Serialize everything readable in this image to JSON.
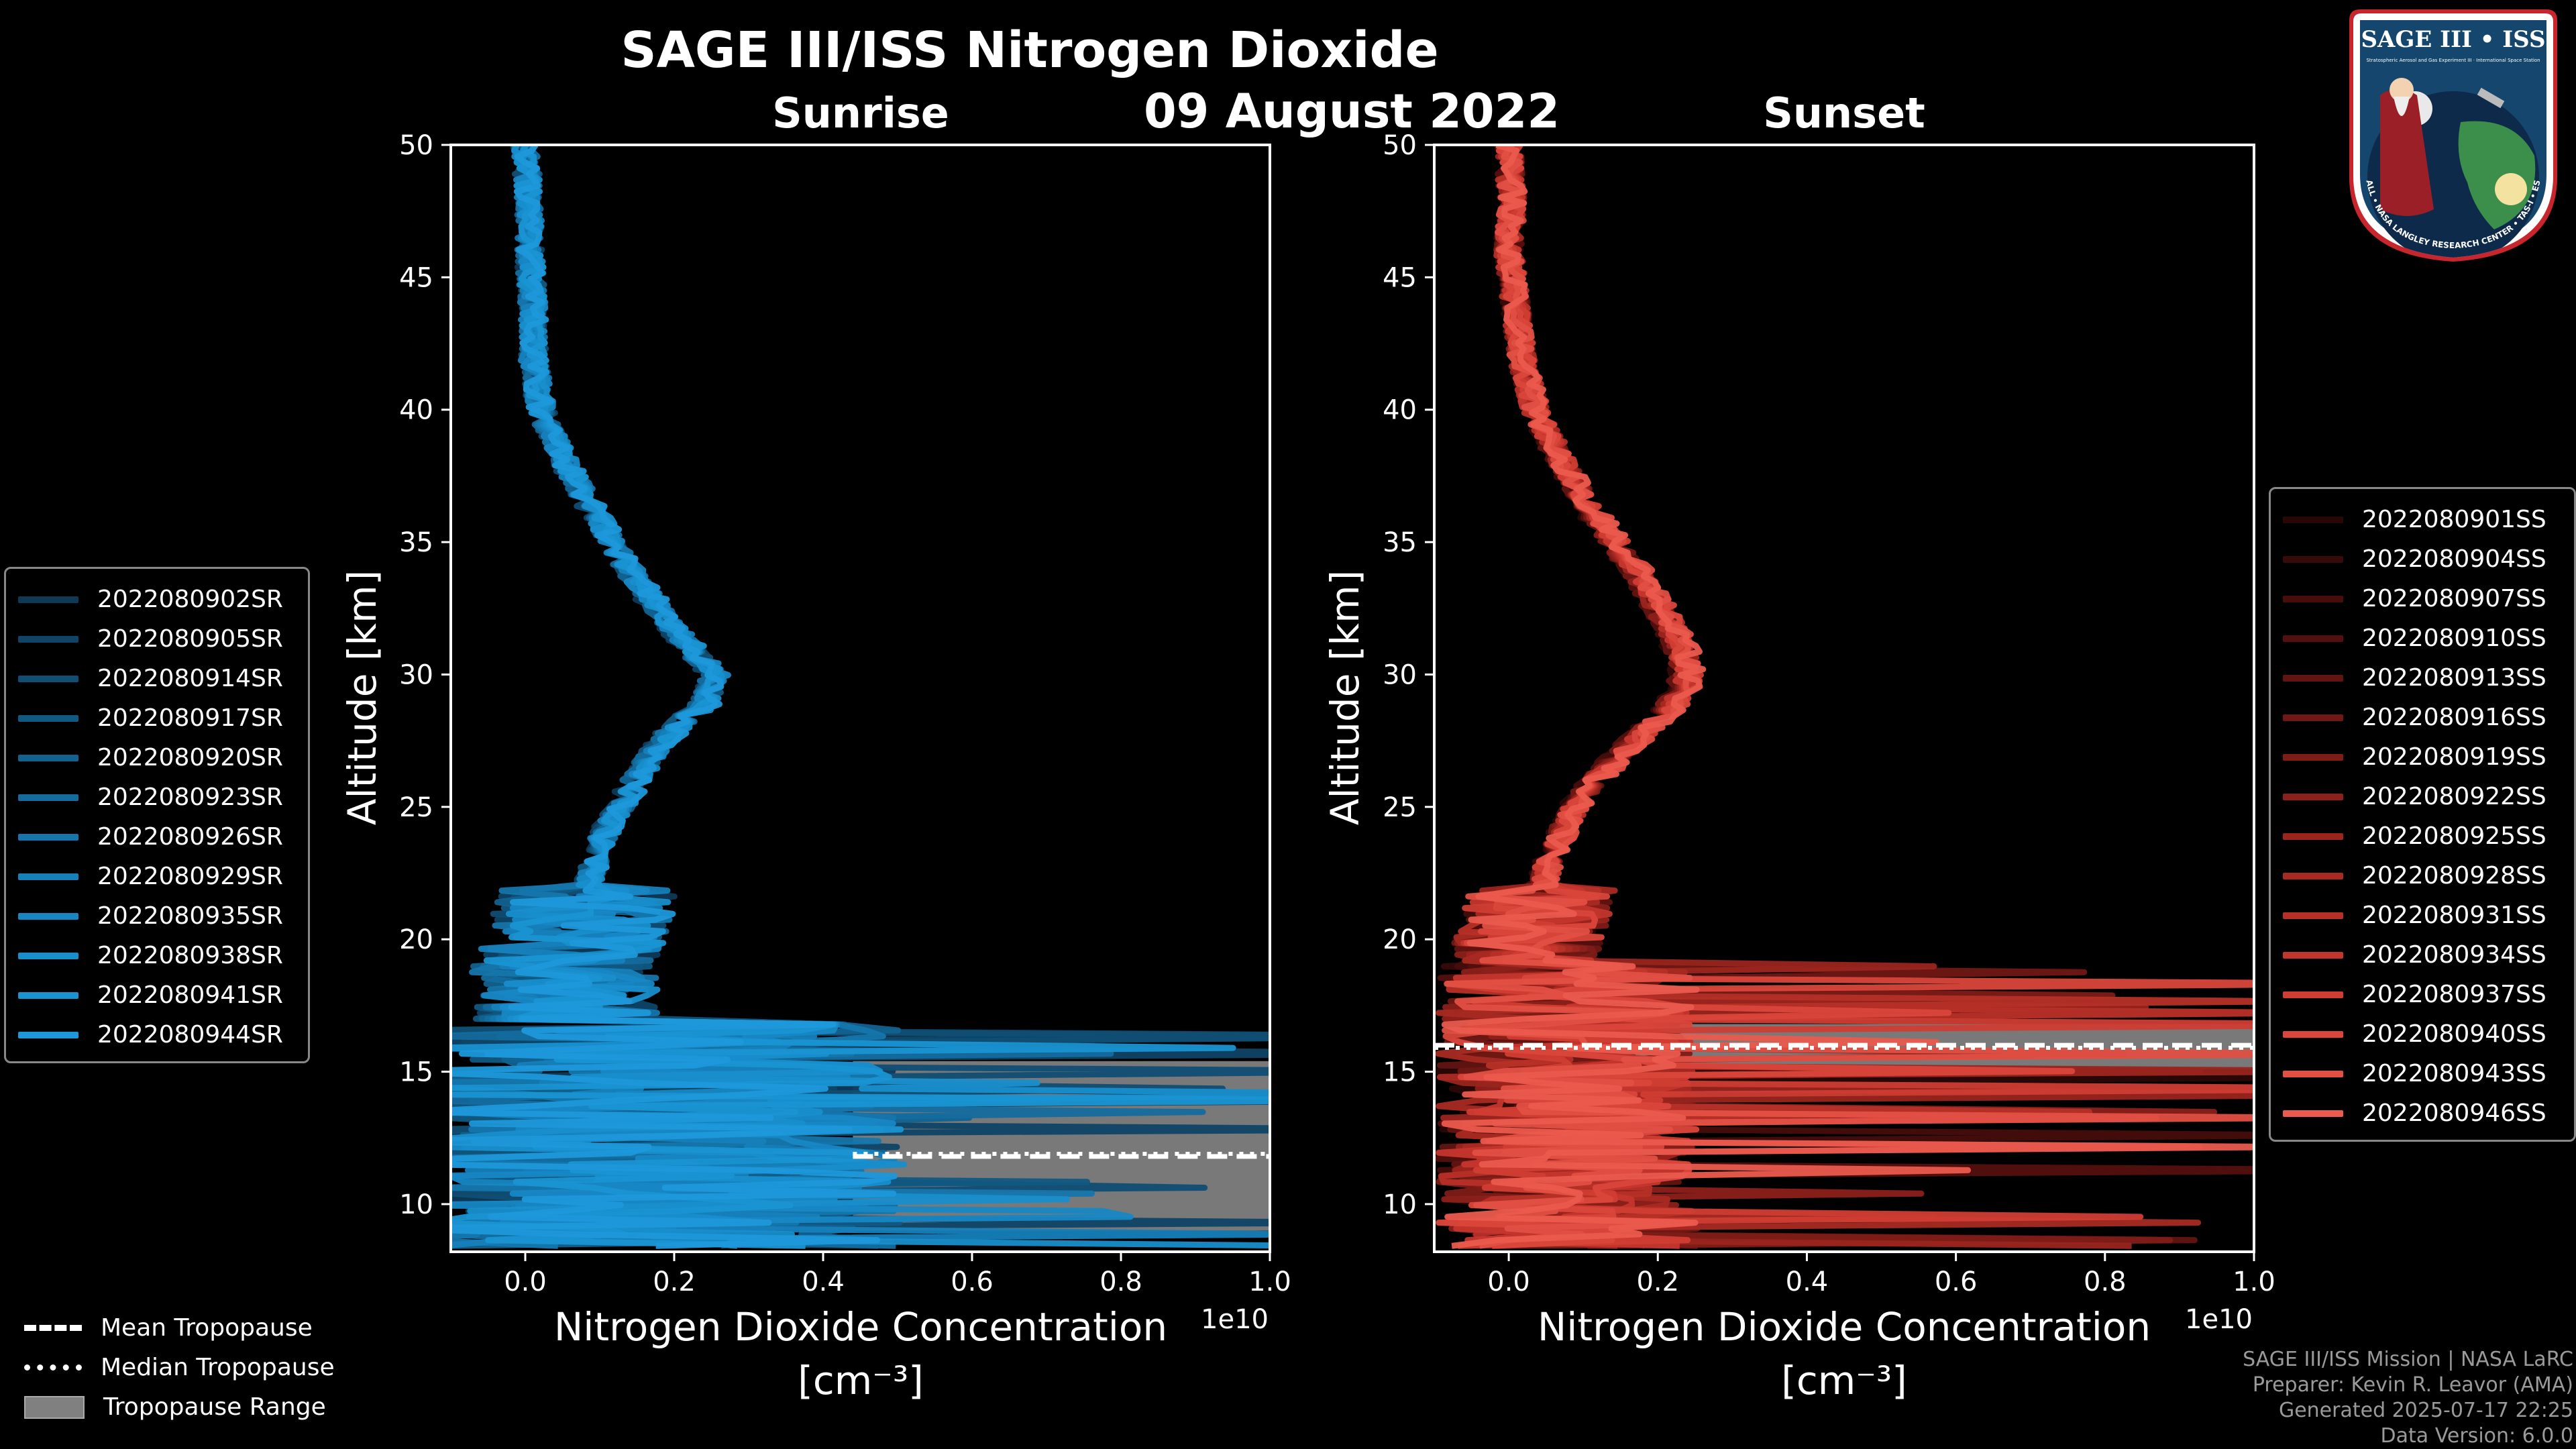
{
  "header": {
    "title": "SAGE III/ISS Nitrogen Dioxide",
    "date": "09 August 2022"
  },
  "colors": {
    "background": "#000000",
    "sunrise_base": "#1E8FD0",
    "sunset_base": "#E8574A",
    "tropo_range": "#808080",
    "axis": "#FFFFFF"
  },
  "chart_data": [
    {
      "type": "line",
      "panel": "sunrise",
      "title": "Sunrise",
      "xlabel": "Nitrogen Dioxide Concentration",
      "xlabel_units": "[cm⁻³]",
      "ylabel": "Altitude [km]",
      "x_scale_label": "1e10",
      "xlim": [
        -0.1,
        1.0
      ],
      "ylim": [
        8.2,
        50
      ],
      "xticks": [
        0.0,
        0.2,
        0.4,
        0.6,
        0.8,
        1.0
      ],
      "xtick_labels": [
        "0.0",
        "0.2",
        "0.4",
        "0.6",
        "0.8",
        "1.0"
      ],
      "yticks": [
        10,
        15,
        20,
        25,
        30,
        35,
        40,
        45,
        50
      ],
      "ytick_labels": [
        "10",
        "15",
        "20",
        "25",
        "30",
        "35",
        "40",
        "45",
        "50"
      ],
      "series_names": [
        "2022080902SR",
        "2022080905SR",
        "2022080914SR",
        "2022080917SR",
        "2022080920SR",
        "2022080923SR",
        "2022080926SR",
        "2022080929SR",
        "2022080935SR",
        "2022080938SR",
        "2022080941SR",
        "2022080944SR"
      ],
      "series_colors": [
        "#0E3A58",
        "#0F4466",
        "#104E74",
        "#115882",
        "#126290",
        "#146C9E",
        "#1576AC",
        "#1680BA",
        "#1787C4",
        "#188ECC",
        "#1993D2",
        "#1E98DA"
      ],
      "mean_profile": {
        "alt": [
          50,
          48,
          46,
          44,
          42,
          40,
          38,
          36,
          34,
          32,
          31,
          30,
          29,
          28,
          27,
          26,
          25,
          24,
          23,
          22,
          21,
          20,
          19,
          18,
          17,
          16,
          15,
          14,
          13,
          12,
          11,
          10,
          9.5,
          9
        ],
        "no2": [
          0.0,
          0.005,
          0.005,
          0.01,
          0.01,
          0.02,
          0.05,
          0.09,
          0.13,
          0.18,
          0.21,
          0.24,
          0.23,
          0.19,
          0.16,
          0.14,
          0.12,
          0.1,
          0.09,
          0.08,
          0.07,
          0.06,
          0.05,
          0.05,
          0.05,
          0.05,
          0.05,
          0.05,
          0.05,
          0.05,
          0.05,
          0.05,
          0.05,
          0.05
        ]
      },
      "tropopause": {
        "mean_km": 11.8,
        "median_km": 11.9,
        "range_km": [
          9.0,
          15.4
        ]
      }
    },
    {
      "type": "line",
      "panel": "sunset",
      "title": "Sunset",
      "xlabel": "Nitrogen Dioxide Concentration",
      "xlabel_units": "[cm⁻³]",
      "ylabel": "Altitude [km]",
      "x_scale_label": "1e10",
      "xlim": [
        -0.1,
        1.0
      ],
      "ylim": [
        8.2,
        50
      ],
      "xticks": [
        0.0,
        0.2,
        0.4,
        0.6,
        0.8,
        1.0
      ],
      "xtick_labels": [
        "0.0",
        "0.2",
        "0.4",
        "0.6",
        "0.8",
        "1.0"
      ],
      "yticks": [
        10,
        15,
        20,
        25,
        30,
        35,
        40,
        45,
        50
      ],
      "ytick_labels": [
        "10",
        "15",
        "20",
        "25",
        "30",
        "35",
        "40",
        "45",
        "50"
      ],
      "series_names": [
        "2022080901SS",
        "2022080904SS",
        "2022080907SS",
        "2022080910SS",
        "2022080913SS",
        "2022080916SS",
        "2022080919SS",
        "2022080922SS",
        "2022080925SS",
        "2022080928SS",
        "2022080931SS",
        "2022080934SS",
        "2022080937SS",
        "2022080940SS",
        "2022080943SS",
        "2022080946SS"
      ],
      "series_colors": [
        "#2A0707",
        "#380A09",
        "#460D0B",
        "#54100E",
        "#621411",
        "#701814",
        "#7E1C17",
        "#8C201A",
        "#9A251E",
        "#A82A22",
        "#B63027",
        "#C4362D",
        "#D03D33",
        "#DA463B",
        "#E24F43",
        "#EA5A4D"
      ],
      "mean_profile": {
        "alt": [
          50,
          48,
          46,
          44,
          42,
          40,
          38,
          36,
          34,
          32,
          31,
          30,
          29,
          28,
          27,
          26,
          25,
          24,
          23,
          22,
          21,
          20,
          19,
          18,
          17,
          16,
          15,
          14,
          13,
          12,
          11,
          10,
          9.5,
          9
        ],
        "no2": [
          0.0,
          0.005,
          0.0,
          0.01,
          0.02,
          0.04,
          0.08,
          0.13,
          0.19,
          0.24,
          0.26,
          0.27,
          0.25,
          0.21,
          0.17,
          0.13,
          0.1,
          0.08,
          0.06,
          0.05,
          0.04,
          0.03,
          0.03,
          0.03,
          0.03,
          0.03,
          0.03,
          0.03,
          0.03,
          0.03,
          0.03,
          0.03,
          0.03,
          0.03
        ]
      },
      "tropopause": {
        "mean_km": 16.0,
        "median_km": 15.9,
        "range_km": [
          15.1,
          16.8
        ]
      }
    }
  ],
  "tropo_legend": [
    {
      "label": "Mean Tropopause",
      "style": "dashed"
    },
    {
      "label": "Median Tropopause",
      "style": "dotted"
    },
    {
      "label": "Tropopause Range",
      "style": "fill"
    }
  ],
  "credits": {
    "line1": "SAGE III/ISS Mission | NASA LaRC",
    "line2": "Preparer: Kevin R. Leavor (AMA)",
    "line3": "Generated 2025-07-17 22:25",
    "line4": "Data Version: 6.0.0"
  },
  "logo": {
    "title": "SAGE III • ISS",
    "subtitle": "Stratospheric Aerosol and Gas Experiment III · International Space Station",
    "ring_text": "BALL • NASA LANGLEY RESEARCH CENTER • TAS-I • ESA"
  }
}
